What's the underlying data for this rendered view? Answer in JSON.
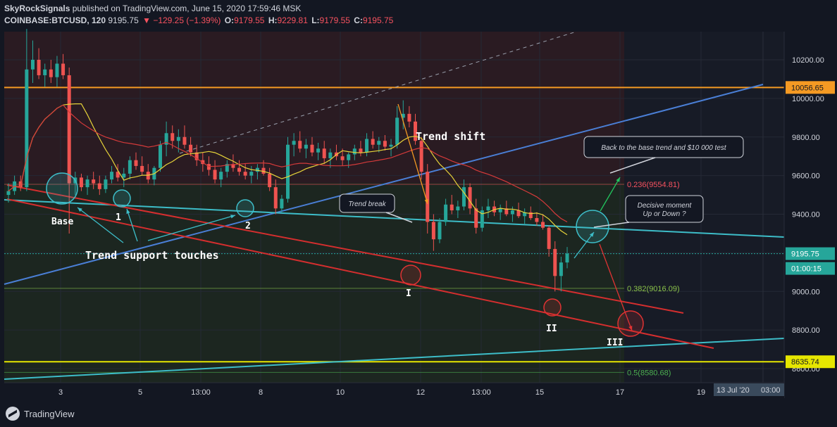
{
  "header": {
    "publisher": "SkyRockSignals",
    "published_text": " published on TradingView.com, June 15, 2020 17:59:46 MSK",
    "symbol": "COINBASE:BTCUSD, 120",
    "last": "9195.75",
    "change": "▼ −129.25 (−1.39%)",
    "open_label": "O:",
    "open": "9179.55",
    "high_label": "H:",
    "high": "9229.81",
    "low_label": "L:",
    "low": "9179.55",
    "close_label": "C:",
    "close": "9195.75"
  },
  "footer": {
    "brand": "TradingView"
  },
  "chart_data": {
    "type": "candlestick",
    "y_ticks": [
      "10200.00",
      "10000.00",
      "9800.00",
      "9600.00",
      "9400.00",
      "9200.00",
      "9000.00",
      "8800.00",
      "8600.00"
    ],
    "x_ticks": [
      "3",
      "5",
      "13:00",
      "8",
      "10",
      "12",
      "13:00",
      "15",
      "17",
      "19"
    ],
    "price_tags": [
      {
        "text": "10056.65",
        "color": "#f59a23"
      },
      {
        "text": "9195.75",
        "color": "#26a69a"
      },
      {
        "text": "01:00:15",
        "color": "#26a69a"
      },
      {
        "text": "8635.74",
        "color": "#e6e600"
      }
    ],
    "fib_levels": [
      {
        "label": "0.236(9554.81)",
        "value": 9554.81,
        "color": "#f7525f"
      },
      {
        "label": "0.382(9016.09)",
        "value": 9016.09,
        "color": "#8bc34a"
      },
      {
        "label": "0.5(8580.68)",
        "value": 8580.68,
        "color": "#4caf50"
      }
    ],
    "horizontal_levels": [
      {
        "value": 10056.65,
        "color": "#f59a23"
      },
      {
        "value": 8635.74,
        "color": "#e6e600"
      }
    ],
    "annotations": {
      "base": "Base",
      "touch1": "1",
      "touch2": "2",
      "support_touches": "Trend support touches",
      "trend_shift": "Trend shift",
      "trend_break": "Trend break",
      "decisive": "Decisive moment",
      "up_or_down": "Up or Down ?",
      "back_to_base": "Back to the base trend and $10 000 test",
      "roman1": "I",
      "roman2": "II",
      "roman3": "III"
    },
    "date_tag": "13 Jul '20",
    "time_tag": "03:00",
    "candles": [
      [
        9500,
        9560,
        9460,
        9520
      ],
      [
        9520,
        9600,
        9500,
        9570
      ],
      [
        9570,
        9600,
        9520,
        9540
      ],
      [
        9540,
        10360,
        9520,
        10150
      ],
      [
        10150,
        10300,
        10080,
        10200
      ],
      [
        10200,
        10260,
        10100,
        10120
      ],
      [
        10120,
        10180,
        10060,
        10150
      ],
      [
        10150,
        10200,
        10080,
        10110
      ],
      [
        10110,
        10220,
        10060,
        10180
      ],
      [
        10180,
        10230,
        10100,
        10120
      ],
      [
        10120,
        10160,
        9300,
        9560
      ],
      [
        9560,
        9620,
        9500,
        9590
      ],
      [
        9590,
        9610,
        9520,
        9540
      ],
      [
        9540,
        9600,
        9500,
        9580
      ],
      [
        9580,
        9620,
        9530,
        9560
      ],
      [
        9560,
        9600,
        9500,
        9530
      ],
      [
        9530,
        9600,
        9510,
        9580
      ],
      [
        9580,
        9650,
        9560,
        9620
      ],
      [
        9620,
        9660,
        9570,
        9590
      ],
      [
        9590,
        9640,
        9540,
        9610
      ],
      [
        9610,
        9700,
        9580,
        9680
      ],
      [
        9680,
        9720,
        9630,
        9650
      ],
      [
        9650,
        9700,
        9600,
        9620
      ],
      [
        9620,
        9660,
        9560,
        9580
      ],
      [
        9580,
        9650,
        9550,
        9640
      ],
      [
        9640,
        9780,
        9620,
        9760
      ],
      [
        9760,
        9880,
        9700,
        9820
      ],
      [
        9820,
        9860,
        9740,
        9780
      ],
      [
        9780,
        9840,
        9720,
        9800
      ],
      [
        9800,
        9860,
        9740,
        9760
      ],
      [
        9760,
        9800,
        9700,
        9720
      ],
      [
        9720,
        9760,
        9650,
        9680
      ],
      [
        9680,
        9720,
        9620,
        9660
      ],
      [
        9660,
        9700,
        9600,
        9630
      ],
      [
        9630,
        9680,
        9560,
        9580
      ],
      [
        9580,
        9640,
        9540,
        9620
      ],
      [
        9620,
        9680,
        9590,
        9660
      ],
      [
        9660,
        9710,
        9620,
        9640
      ],
      [
        9640,
        9680,
        9600,
        9620
      ],
      [
        9620,
        9660,
        9580,
        9600
      ],
      [
        9600,
        9650,
        9560,
        9620
      ],
      [
        9620,
        9660,
        9580,
        9640
      ],
      [
        9640,
        9680,
        9600,
        9610
      ],
      [
        9610,
        9640,
        9520,
        9540
      ],
      [
        9540,
        9580,
        9400,
        9430
      ],
      [
        9430,
        9500,
        9410,
        9480
      ],
      [
        9480,
        9800,
        9460,
        9760
      ],
      [
        9760,
        9820,
        9700,
        9780
      ],
      [
        9780,
        9830,
        9720,
        9740
      ],
      [
        9740,
        9790,
        9690,
        9760
      ],
      [
        9760,
        9800,
        9700,
        9720
      ],
      [
        9720,
        9770,
        9680,
        9740
      ],
      [
        9740,
        9780,
        9660,
        9690
      ],
      [
        9690,
        9740,
        9640,
        9720
      ],
      [
        9720,
        9760,
        9680,
        9700
      ],
      [
        9700,
        9740,
        9650,
        9680
      ],
      [
        9680,
        9720,
        9640,
        9710
      ],
      [
        9710,
        9760,
        9680,
        9740
      ],
      [
        9740,
        9780,
        9700,
        9720
      ],
      [
        9720,
        9820,
        9700,
        9790
      ],
      [
        9790,
        9830,
        9740,
        9760
      ],
      [
        9760,
        9800,
        9720,
        9780
      ],
      [
        9780,
        9810,
        9730,
        9750
      ],
      [
        9750,
        9790,
        9700,
        9760
      ],
      [
        9760,
        9960,
        9740,
        9900
      ],
      [
        9900,
        9990,
        9840,
        9920
      ],
      [
        9920,
        9960,
        9850,
        9880
      ],
      [
        9880,
        9920,
        9760,
        9780
      ],
      [
        9780,
        9800,
        9580,
        9620
      ],
      [
        9620,
        9660,
        9300,
        9360
      ],
      [
        9360,
        9400,
        9210,
        9270
      ],
      [
        9270,
        9380,
        9250,
        9360
      ],
      [
        9360,
        9480,
        9340,
        9450
      ],
      [
        9450,
        9500,
        9400,
        9420
      ],
      [
        9420,
        9470,
        9380,
        9440
      ],
      [
        9440,
        9580,
        9420,
        9540
      ],
      [
        9540,
        9560,
        9400,
        9430
      ],
      [
        9430,
        9480,
        9300,
        9330
      ],
      [
        9330,
        9440,
        9310,
        9420
      ],
      [
        9420,
        9480,
        9380,
        9440
      ],
      [
        9440,
        9470,
        9390,
        9410
      ],
      [
        9410,
        9450,
        9370,
        9430
      ],
      [
        9430,
        9470,
        9390,
        9400
      ],
      [
        9400,
        9440,
        9360,
        9420
      ],
      [
        9420,
        9460,
        9380,
        9390
      ],
      [
        9390,
        9430,
        9350,
        9410
      ],
      [
        9410,
        9440,
        9370,
        9380
      ],
      [
        9380,
        9410,
        9340,
        9360
      ],
      [
        9360,
        9400,
        9320,
        9330
      ],
      [
        9330,
        9340,
        9180,
        9220
      ],
      [
        9220,
        9260,
        9000,
        9080
      ],
      [
        9080,
        9180,
        9000,
        9150
      ],
      [
        9150,
        9230,
        9120,
        9196
      ]
    ]
  }
}
